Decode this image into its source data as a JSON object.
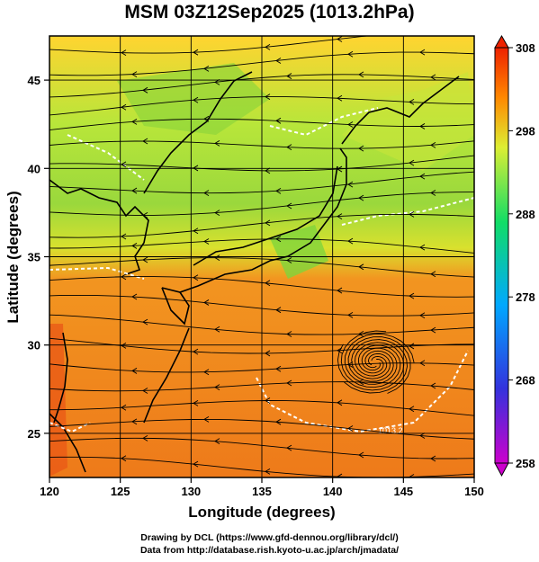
{
  "map": {
    "title": "MSM 03Z12Sep2025 (1013.2hPa)",
    "xlabel": "Longitude (degrees)",
    "ylabel": "Latitude  (degrees)",
    "lon_range": [
      120,
      150
    ],
    "lat_range": [
      22.5,
      47.5
    ],
    "lon_ticks": [
      120,
      125,
      130,
      135,
      140,
      145,
      150
    ],
    "lat_ticks": [
      25,
      30,
      35,
      40,
      45
    ],
    "contour_label": "1013.2",
    "colorbar": {
      "min": 258,
      "max": 308,
      "ticks": [
        258,
        268,
        278,
        288,
        298,
        308
      ],
      "colors": [
        "#cc00cc",
        "#3333dd",
        "#00a8ff",
        "#11dd66",
        "#ddee33",
        "#ff8800",
        "#ee2200"
      ]
    },
    "credits": {
      "line1": "Drawing by DCL (https://www.gfd-dennou.org/library/dcl/)",
      "line2": "Data from http://database.rish.kyoto-u.ac.jp/arch/jmadata/"
    }
  }
}
